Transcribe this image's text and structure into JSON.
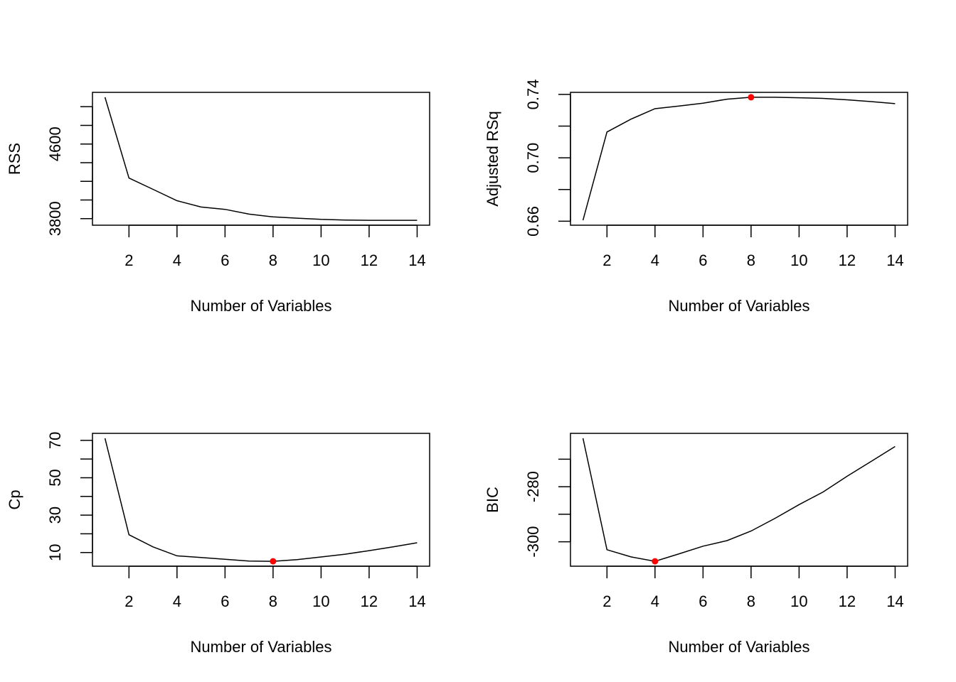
{
  "chart_data": [
    {
      "type": "line",
      "name": "rss",
      "xlabel": "Number of Variables",
      "ylabel": "RSS",
      "x": [
        1,
        2,
        3,
        4,
        5,
        6,
        7,
        8,
        9,
        10,
        11,
        12,
        13,
        14
      ],
      "values": [
        5101,
        4235,
        4114,
        3992,
        3924,
        3899,
        3848,
        3818,
        3805,
        3792,
        3785,
        3782,
        3782,
        3782
      ],
      "xticks": [
        2,
        4,
        6,
        8,
        10,
        12,
        14
      ],
      "yticks": [
        3800,
        4000,
        4200,
        4400,
        4600,
        4800,
        5000
      ],
      "ytick_labels": [
        "3800",
        "",
        "",
        "",
        "4600",
        "",
        ""
      ],
      "highlight": null,
      "grid": false
    },
    {
      "type": "line",
      "name": "adjr2",
      "xlabel": "Number of Variables",
      "ylabel": "Adjusted RSq",
      "x": [
        1,
        2,
        3,
        4,
        5,
        6,
        7,
        8,
        9,
        10,
        11,
        12,
        13,
        14
      ],
      "values": [
        0.6606,
        0.7163,
        0.7244,
        0.731,
        0.7327,
        0.7345,
        0.737,
        0.7382,
        0.7382,
        0.7379,
        0.7375,
        0.7366,
        0.7355,
        0.7342
      ],
      "xticks": [
        2,
        4,
        6,
        8,
        10,
        12,
        14
      ],
      "yticks": [
        0.66,
        0.68,
        0.7,
        0.72,
        0.74
      ],
      "ytick_labels": [
        "0.66",
        "",
        "0.70",
        "",
        "0.74"
      ],
      "highlight": {
        "x": 8,
        "y": 0.7382,
        "label": "max"
      },
      "grid": false
    },
    {
      "type": "line",
      "name": "cp",
      "xlabel": "Number of Variables",
      "ylabel": "Cp",
      "x": [
        1,
        2,
        3,
        4,
        5,
        6,
        7,
        8,
        9,
        10,
        11,
        12,
        13,
        14
      ],
      "values": [
        71.1,
        19.5,
        13.0,
        8.2,
        7.3,
        6.4,
        5.4,
        5.3,
        6.2,
        7.6,
        9.1,
        11.0,
        13.0,
        15.2
      ],
      "xticks": [
        2,
        4,
        6,
        8,
        10,
        12,
        14
      ],
      "yticks": [
        10,
        20,
        30,
        40,
        50,
        60,
        70
      ],
      "ytick_labels": [
        "10",
        "",
        "30",
        "",
        "50",
        "",
        "70"
      ],
      "highlight": {
        "x": 8,
        "y": 5.3,
        "label": "min"
      },
      "grid": false
    },
    {
      "type": "line",
      "name": "bic",
      "xlabel": "Number of Variables",
      "ylabel": "BIC",
      "x": [
        1,
        2,
        3,
        4,
        5,
        6,
        7,
        8,
        9,
        10,
        11,
        12,
        13,
        14
      ],
      "values": [
        -262.4,
        -302.9,
        -305.5,
        -307.1,
        -304.4,
        -301.6,
        -299.6,
        -296.1,
        -291.5,
        -286.5,
        -281.9,
        -276.2,
        -270.8,
        -265.4
      ],
      "xticks": [
        2,
        4,
        6,
        8,
        10,
        12,
        14
      ],
      "yticks": [
        -300,
        -290,
        -280,
        -270
      ],
      "ytick_labels": [
        "-300",
        "",
        "-280",
        ""
      ],
      "highlight": {
        "x": 4,
        "y": -307.1,
        "label": "min"
      },
      "grid": false
    }
  ],
  "colors": {
    "line": "#000000",
    "highlight": "#ff0000"
  }
}
